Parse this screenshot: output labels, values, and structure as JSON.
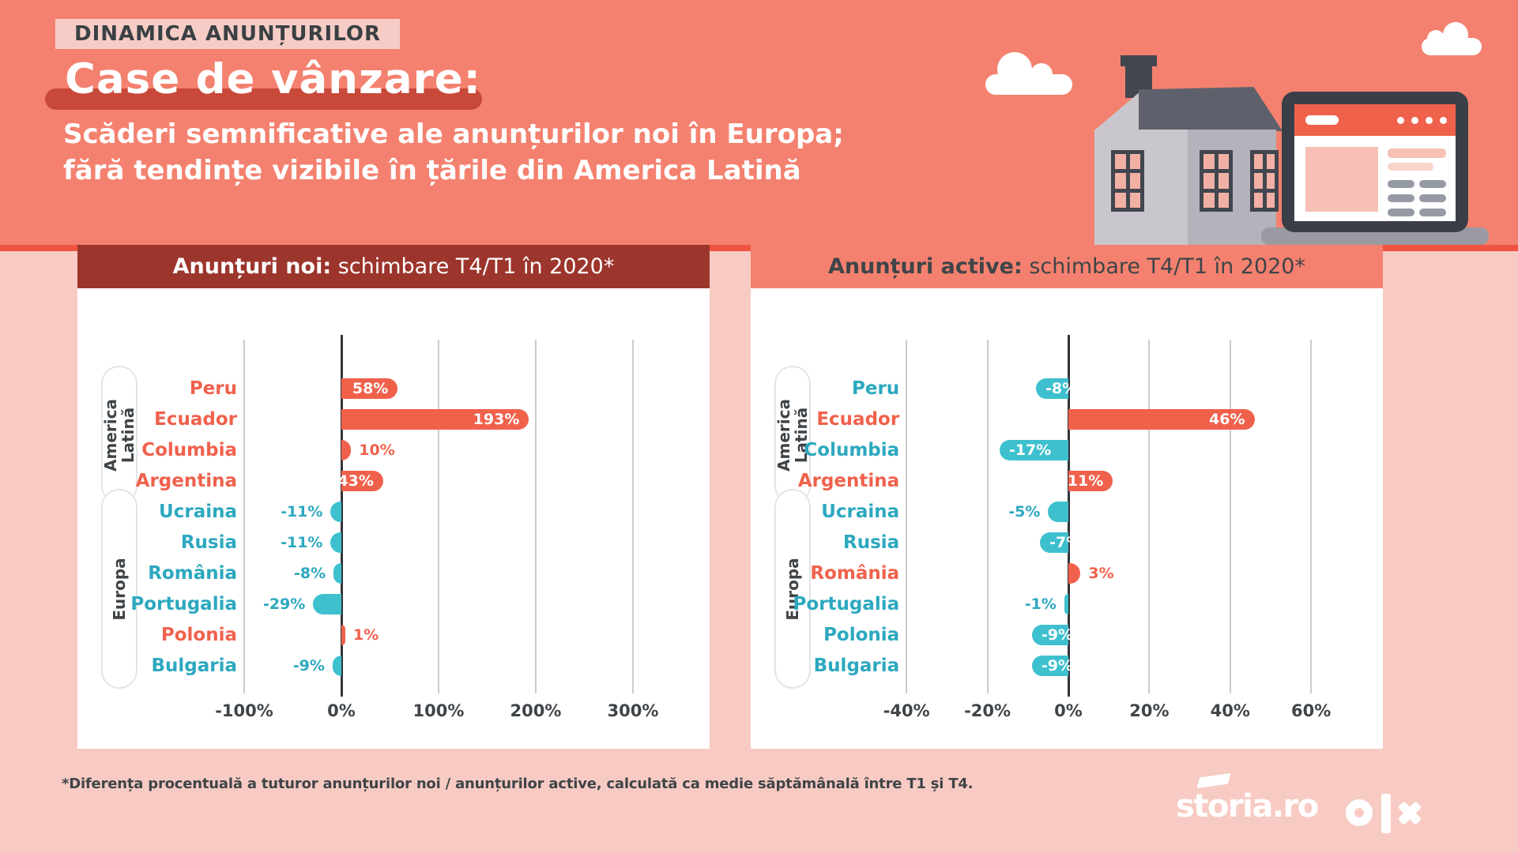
{
  "page": {
    "badge": "DINAMICA ANUNȚURILOR",
    "title": "Case de vânzare:",
    "subtitle_line1": "Scăderi semnificative ale anunțurilor noi în Europa;",
    "subtitle_line2": "fără tendințe vizibile în țările din America Latină",
    "footnote": "*Diferența procentuală a tuturor anunțurilor noi / anunțurilor active, calculată ca medie săptămânală între T1 și T4.",
    "logos": {
      "storia": "storia.ro",
      "olx": "olx"
    }
  },
  "colors": {
    "top_band": "#F4816F",
    "accent_strip": "#EE5440",
    "page_bg": "#F7CBC3",
    "header_dark_red": "#9C352C",
    "bar_positive": "#F0614C",
    "bar_negative": "#3EC0CE",
    "label_negative_text": "#2CA8BF",
    "charcoal_text": "#3F4448",
    "white": "#FFFFFF"
  },
  "chart_data": [
    {
      "type": "bar",
      "orientation": "horizontal",
      "title_bold": "Anunțuri noi:",
      "title_rest": " schimbare T4/T1 în 2020*",
      "header_theme": "dark",
      "categories": [
        "Peru",
        "Ecuador",
        "Columbia",
        "Argentina",
        "Ucraina",
        "Rusia",
        "România",
        "Portugalia",
        "Polonia",
        "Bulgaria"
      ],
      "values": [
        58,
        193,
        10,
        43,
        -11,
        -11,
        -8,
        -29,
        1,
        -9
      ],
      "value_labels": [
        "58%",
        "193%",
        "10%",
        "43%",
        "-11%",
        "-11%",
        "-8%",
        "-29%",
        "1%",
        "-9%"
      ],
      "label_inside": [
        true,
        true,
        false,
        true,
        false,
        false,
        false,
        false,
        false,
        false
      ],
      "ticks": [
        -100,
        0,
        100,
        200,
        300
      ],
      "tick_labels": [
        "-100%",
        "0%",
        "100%",
        "200%",
        "300%"
      ],
      "xlim": [
        -180,
        380
      ],
      "grid": true,
      "groups": [
        {
          "label": "America Latină",
          "lines": [
            "America",
            "Latină"
          ],
          "from": 0,
          "to": 3
        },
        {
          "label": "Europa",
          "lines": [
            "Europa"
          ],
          "from": 4,
          "to": 9
        }
      ]
    },
    {
      "type": "bar",
      "orientation": "horizontal",
      "title_bold": "Anunțuri active:",
      "title_rest": " schimbare T4/T1 în 2020*",
      "header_theme": "light",
      "categories": [
        "Peru",
        "Ecuador",
        "Columbia",
        "Argentina",
        "Ucraina",
        "Rusia",
        "România",
        "Portugalia",
        "Polonia",
        "Bulgaria"
      ],
      "values": [
        -8,
        46,
        -17,
        11,
        -5,
        -7,
        3,
        -1,
        -9,
        -9
      ],
      "value_labels": [
        "-8%",
        "46%",
        "-17%",
        "11%",
        "-5%",
        "-7%",
        "3%",
        "-1%",
        "-9%",
        "-9%"
      ],
      "label_inside": [
        true,
        true,
        true,
        true,
        false,
        true,
        false,
        false,
        true,
        true
      ],
      "ticks": [
        -40,
        -20,
        0,
        20,
        40,
        60
      ],
      "tick_labels": [
        "-40%",
        "-20%",
        "0%",
        "20%",
        "40%",
        "60%"
      ],
      "xlim": [
        -78,
        82
      ],
      "grid": true,
      "groups": [
        {
          "label": "America Latină",
          "lines": [
            "America",
            "Latină"
          ],
          "from": 0,
          "to": 3
        },
        {
          "label": "Europa",
          "lines": [
            "Europa"
          ],
          "from": 4,
          "to": 9
        }
      ]
    }
  ]
}
